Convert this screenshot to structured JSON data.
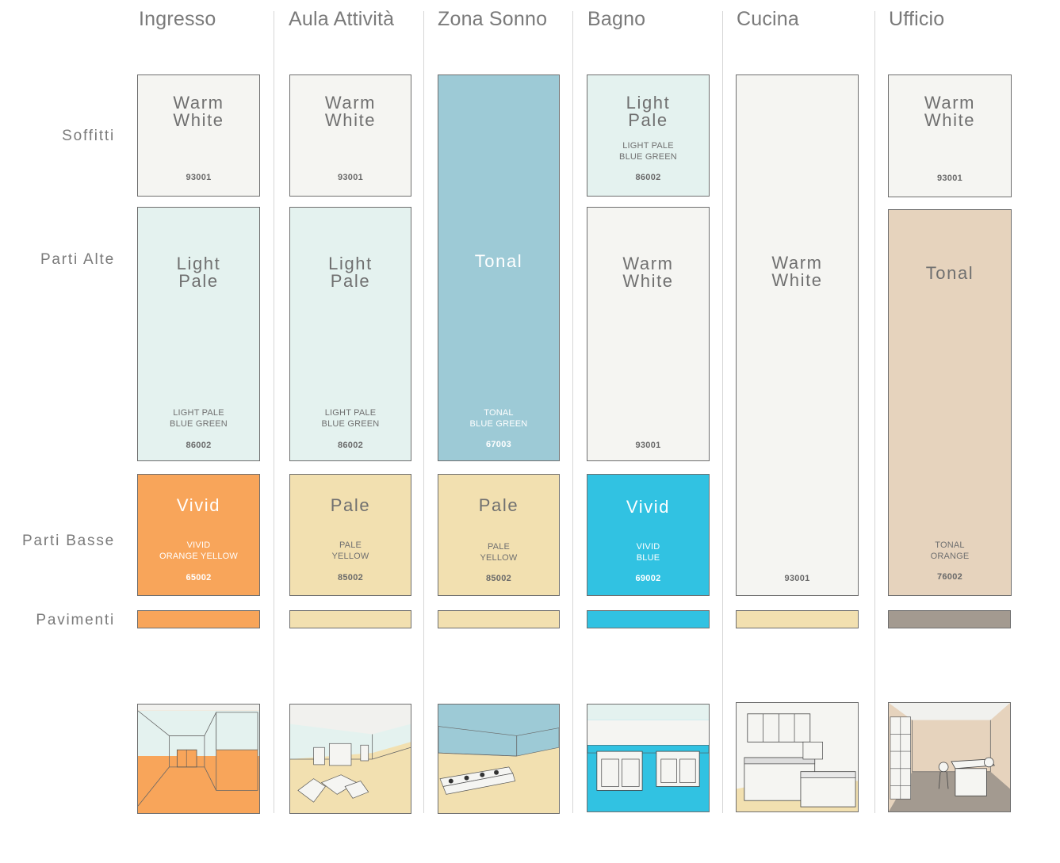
{
  "columns": [
    {
      "title": "Ingresso"
    },
    {
      "title": "Aula Attività"
    },
    {
      "title": "Zona Sonno"
    },
    {
      "title": "Bagno"
    },
    {
      "title": "Cucina"
    },
    {
      "title": "Ufficio"
    }
  ],
  "rows": {
    "soffitti": "Soffitti",
    "parti_alte": "Parti Alte",
    "parti_basse": "Parti Basse",
    "pavimenti": "Pavimenti"
  },
  "swatches": {
    "ingresso_soffitti": {
      "name": "Warm\nWhite",
      "desc": "",
      "code": "93001"
    },
    "ingresso_alte": {
      "name": "Light\nPale",
      "desc": "LIGHT PALE\nBLUE GREEN",
      "code": "86002"
    },
    "ingresso_basse": {
      "name": "Vivid",
      "desc": "VIVID\nORANGE YELLOW",
      "code": "65002"
    },
    "aula_soffitti": {
      "name": "Warm\nWhite",
      "desc": "",
      "code": "93001"
    },
    "aula_alte": {
      "name": "Light\nPale",
      "desc": "LIGHT PALE\nBLUE GREEN",
      "code": "86002"
    },
    "aula_basse": {
      "name": "Pale",
      "desc": "PALE\nYELLOW",
      "code": "85002"
    },
    "sonno_alte": {
      "name": "Tonal",
      "desc": "TONAL\nBLUE GREEN",
      "code": "67003"
    },
    "sonno_basse": {
      "name": "Pale",
      "desc": "PALE\nYELLOW",
      "code": "85002"
    },
    "bagno_soffitti": {
      "name": "Light\nPale",
      "desc": "LIGHT PALE\nBLUE GREEN",
      "code": "86002"
    },
    "bagno_alte": {
      "name": "Warm\nWhite",
      "desc": "",
      "code": "93001"
    },
    "bagno_basse": {
      "name": "Vivid",
      "desc": "VIVID\nBLUE",
      "code": "69002"
    },
    "cucina_walls": {
      "name": "Warm\nWhite",
      "desc": "",
      "code": "93001"
    },
    "ufficio_soffitti": {
      "name": "Warm\nWhite",
      "desc": "",
      "code": "93001"
    },
    "ufficio_walls": {
      "name": "Tonal",
      "desc": "TONAL\nORANGE",
      "code": "76002"
    }
  },
  "colors": {
    "warm_white": "#f5f5f2",
    "light_pale_blue_green": "#e4f2ef",
    "tonal_blue_green": "#9dcad6",
    "vivid_orange_yellow": "#f8a55a",
    "pale_yellow": "#f2e0b0",
    "vivid_blue": "#31c2e2",
    "tonal_orange": "#e6d3bd",
    "floor_grey": "#a39a90"
  }
}
